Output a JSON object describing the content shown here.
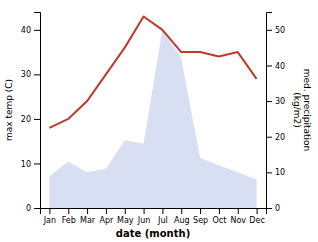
{
  "chart_data": {
    "type": "line",
    "xlabel": "date (month)",
    "ylabel": "max temp (C)",
    "y2label": "med. precipitation\n(kg/m2)",
    "categories": [
      "Jan",
      "Feb",
      "Mar",
      "Apr",
      "May",
      "Jun",
      "Jul",
      "Aug",
      "Sep",
      "Oct",
      "Nov",
      "Dec"
    ],
    "series": [
      {
        "type": "area",
        "axis": "y2",
        "color": "#b8c4e8",
        "values": [
          9,
          13,
          10,
          11,
          19,
          18,
          50,
          42,
          14,
          12,
          10,
          8
        ]
      },
      {
        "type": "line",
        "color": "#c0392b",
        "values": [
          18,
          20,
          24,
          30,
          36,
          43,
          40,
          35,
          35,
          34,
          35,
          29
        ]
      }
    ],
    "ylim": [
      0,
      44
    ],
    "yticks": [
      0,
      10,
      20,
      30,
      40
    ],
    "y2lim": [
      0,
      55
    ],
    "y2ticks": [
      0,
      10,
      20,
      30,
      40,
      50
    ],
    "grid": false
  }
}
